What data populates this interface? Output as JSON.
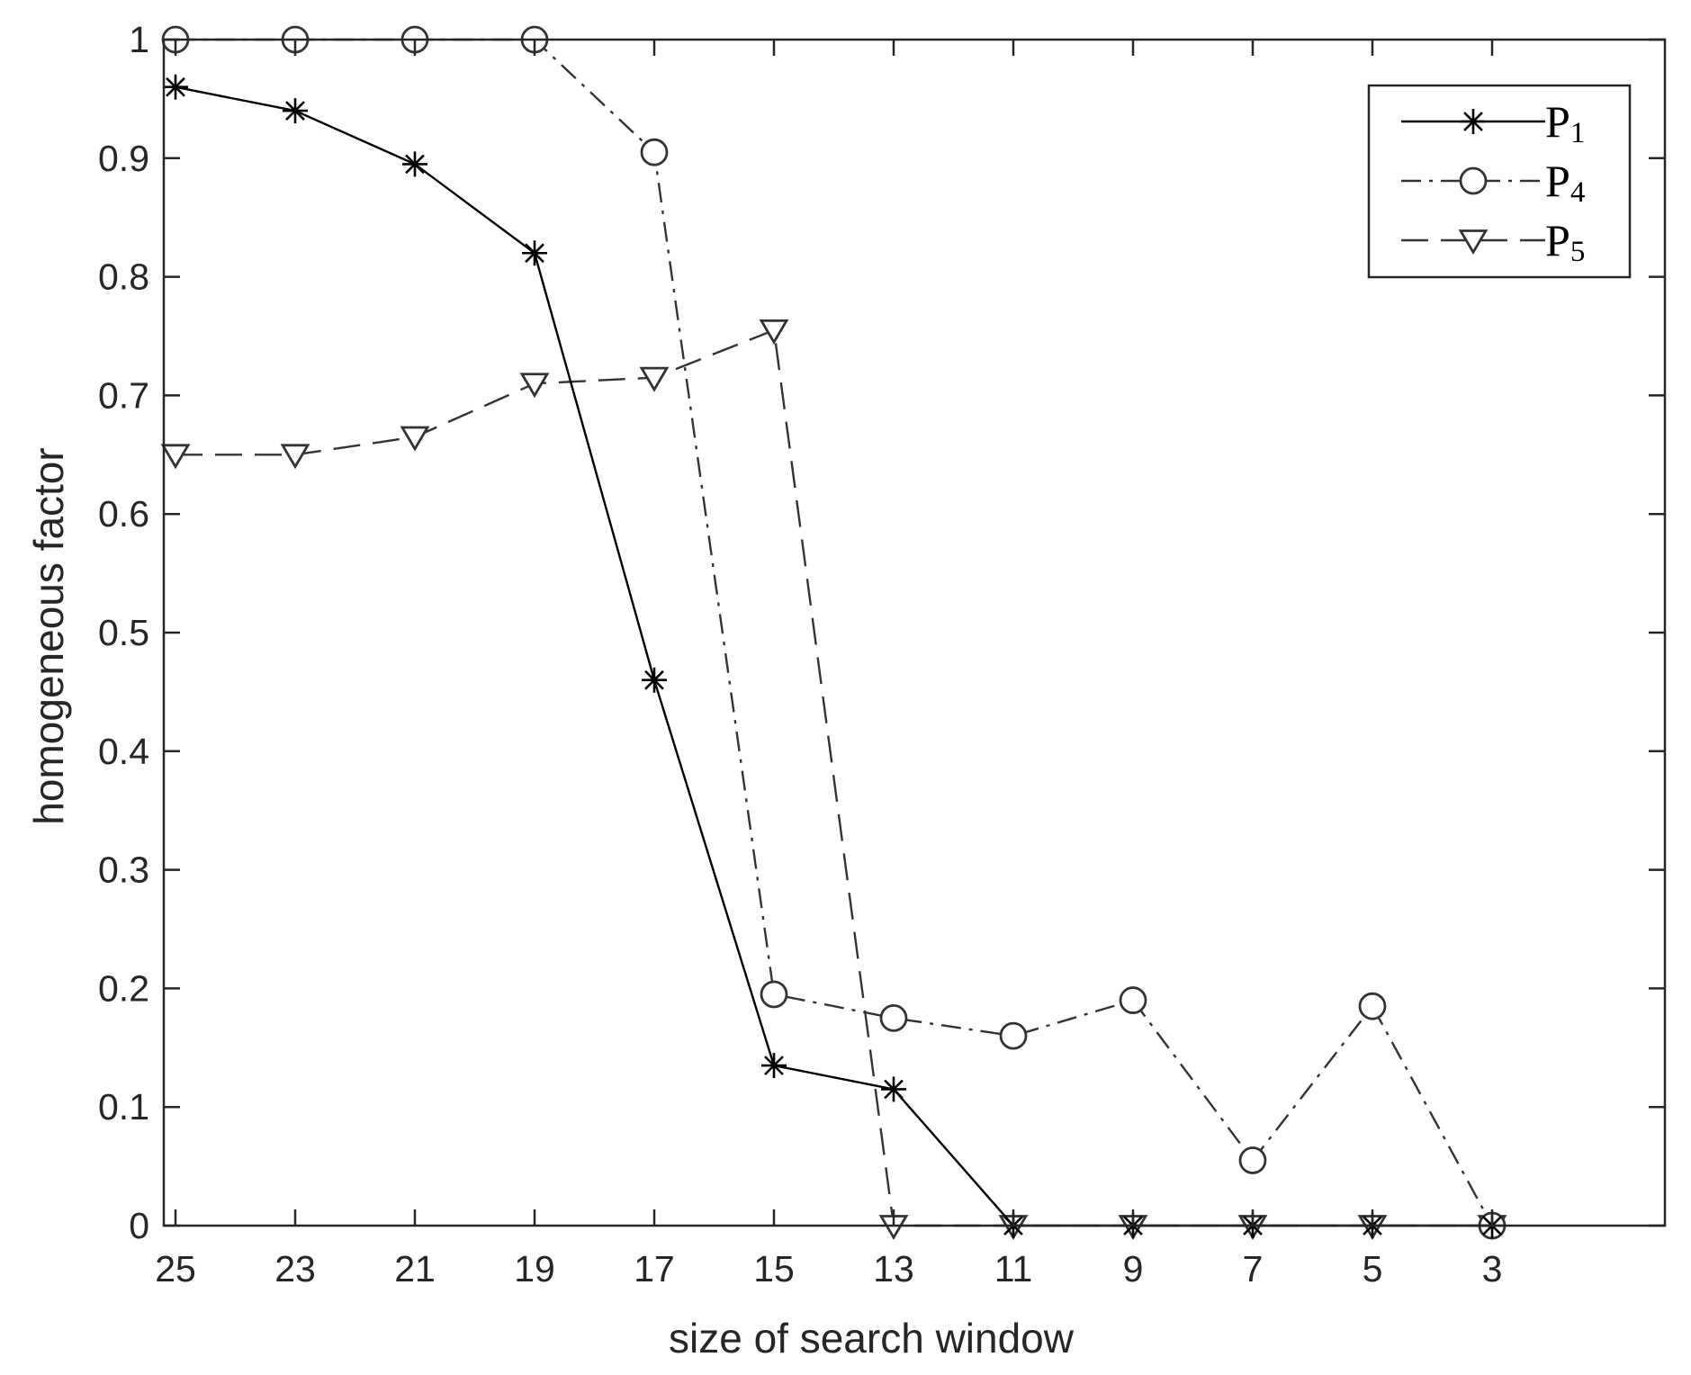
{
  "chart_data": {
    "type": "line",
    "title": "",
    "xlabel": "size of search window",
    "ylabel": "homogeneous factor",
    "x": [
      25,
      23,
      21,
      19,
      17,
      15,
      13,
      11,
      9,
      7,
      5,
      3
    ],
    "x_tick_labels": [
      "25",
      "23",
      "21",
      "19",
      "17",
      "15",
      "13",
      "11",
      "9",
      "7",
      "5",
      "3"
    ],
    "x_reversed": true,
    "y_ticks": [
      "0",
      "0.1",
      "0.2",
      "0.3",
      "0.4",
      "0.5",
      "0.6",
      "0.7",
      "0.8",
      "0.9",
      "1"
    ],
    "ylim": [
      0,
      1
    ],
    "grid": false,
    "legend_position": "top-right",
    "series": [
      {
        "name": "P1",
        "name_base": "P",
        "name_sub": "1",
        "line_style": "solid",
        "marker": "asterisk",
        "color": "#000000",
        "values": [
          0.96,
          0.94,
          0.895,
          0.82,
          0.46,
          0.135,
          0.115,
          0,
          0,
          0,
          0,
          0
        ]
      },
      {
        "name": "P4",
        "name_base": "P",
        "name_sub": "4",
        "line_style": "dash-dot",
        "marker": "circle",
        "color": "#333333",
        "values": [
          1,
          1,
          1,
          1,
          0.905,
          0.195,
          0.175,
          0.16,
          0.19,
          0.055,
          0.185,
          0
        ]
      },
      {
        "name": "P5",
        "name_base": "P",
        "name_sub": "5",
        "line_style": "dashed",
        "marker": "triangle-down",
        "color": "#333333",
        "values": [
          0.65,
          0.65,
          0.665,
          0.71,
          0.715,
          0.755,
          0,
          0,
          0,
          0,
          0,
          0
        ]
      }
    ]
  }
}
